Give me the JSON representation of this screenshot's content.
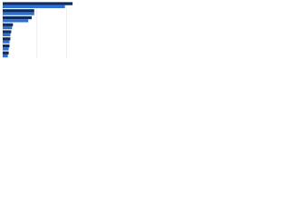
{
  "chart_data": {
    "type": "bar",
    "orientation": "horizontal",
    "categories": [
      null,
      null,
      null,
      null,
      null,
      null,
      null,
      null
    ],
    "series": [
      {
        "color": "#0d2b5e",
        "values": [
          82,
          37,
          34,
          12,
          10,
          9,
          8,
          7
        ]
      },
      {
        "color": "#2e6fd0",
        "values": [
          73,
          37,
          30,
          11,
          9,
          8,
          7,
          6
        ]
      }
    ],
    "xlim": [
      0,
      100
    ],
    "xticks": [
      0,
      40,
      75
    ],
    "grid": true
  }
}
